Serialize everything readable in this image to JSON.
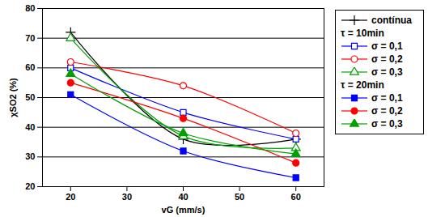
{
  "chart_data": {
    "type": "line",
    "x_label": "vG (mm/s)",
    "y_label": "χSO2 (%)",
    "x": [
      20,
      40,
      60
    ],
    "xlim": [
      15,
      65
    ],
    "xticks": [
      20,
      30,
      40,
      50,
      60
    ],
    "ylim": [
      20,
      80
    ],
    "yticks": [
      20,
      30,
      40,
      50,
      60,
      70,
      80
    ],
    "grid": true,
    "legend": "right",
    "series": [
      {
        "name": "contínua",
        "color": "#000000",
        "marker": "plus",
        "line_style": "solid",
        "values": [
          72,
          36,
          36
        ]
      },
      {
        "group": "τ = 10min",
        "name": "σ = 0,1",
        "color": "#0000ff",
        "marker": "square-open",
        "line_style": "solid",
        "values": [
          60,
          45,
          36
        ]
      },
      {
        "group": "τ = 10min",
        "name": "σ = 0,2",
        "color": "#ff0000",
        "marker": "circle-open",
        "line_style": "solid",
        "values": [
          62,
          54,
          38
        ]
      },
      {
        "group": "τ = 10min",
        "name": "σ = 0,3",
        "color": "#00a000",
        "marker": "triangle-open",
        "line_style": "solid",
        "values": [
          70,
          37,
          33
        ]
      },
      {
        "group": "τ = 20min",
        "name": "σ = 0,1",
        "color": "#0000ff",
        "marker": "square",
        "line_style": "solid",
        "values": [
          51,
          32,
          23
        ]
      },
      {
        "group": "τ = 20min",
        "name": "σ = 0,2",
        "color": "#ff0000",
        "marker": "circle",
        "line_style": "solid",
        "values": [
          55,
          43,
          28
        ]
      },
      {
        "group": "τ = 20min",
        "name": "σ = 0,3",
        "color": "#00a000",
        "marker": "triangle",
        "line_style": "solid",
        "values": [
          58,
          38,
          31
        ]
      }
    ]
  }
}
